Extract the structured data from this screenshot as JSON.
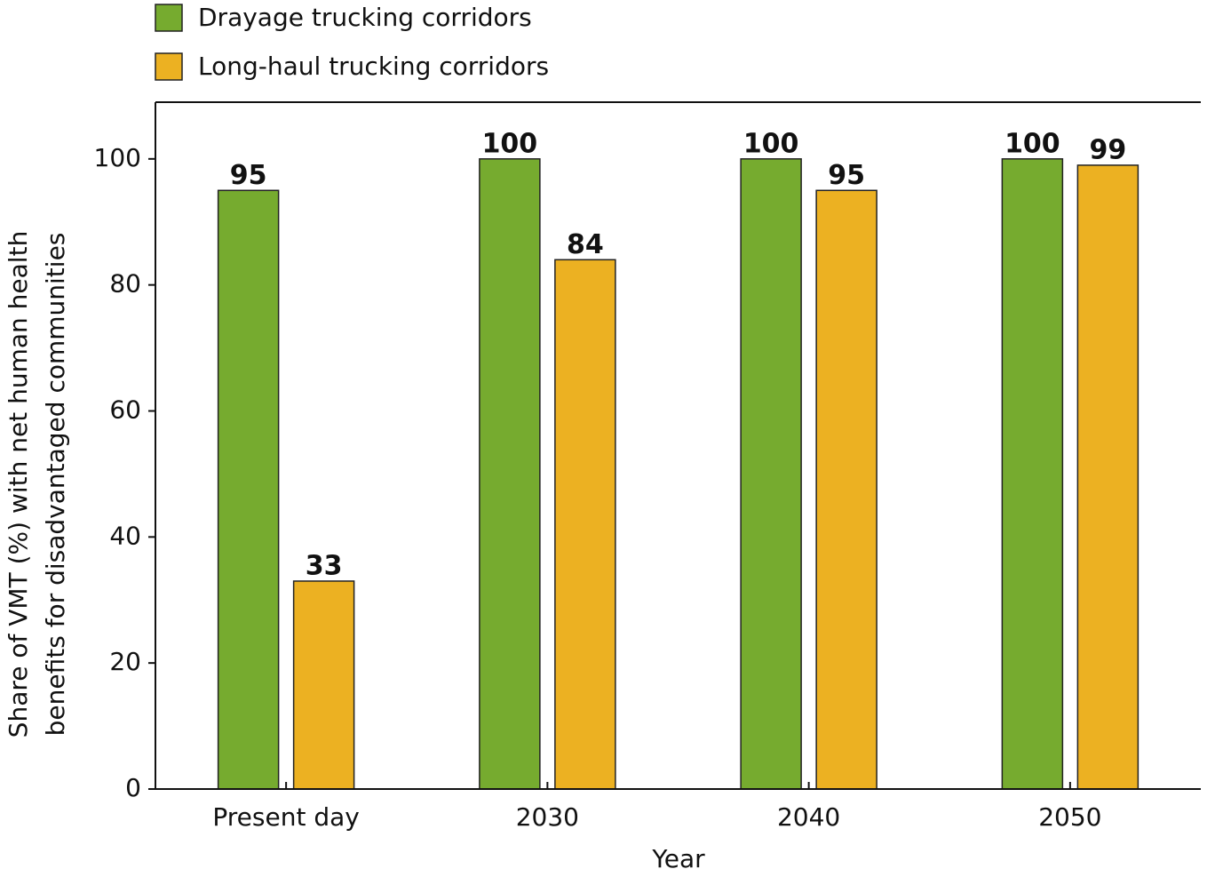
{
  "chart_data": {
    "type": "bar",
    "categories": [
      "Present day",
      "2030",
      "2040",
      "2050"
    ],
    "series": [
      {
        "name": "Drayage trucking corridors",
        "color": "#76ab2f",
        "values": [
          95,
          100,
          100,
          100
        ]
      },
      {
        "name": "Long-haul trucking corridors",
        "color": "#ecb122",
        "values": [
          33,
          84,
          95,
          99
        ]
      }
    ],
    "xlabel": "Year",
    "ylabel": [
      "Share of VMT (%) with net human health",
      "benefits for disadvantaged communities"
    ],
    "ylim": [
      0,
      109
    ],
    "yticks": [
      0,
      20,
      40,
      60,
      80,
      100
    ],
    "legend": "top-left"
  }
}
